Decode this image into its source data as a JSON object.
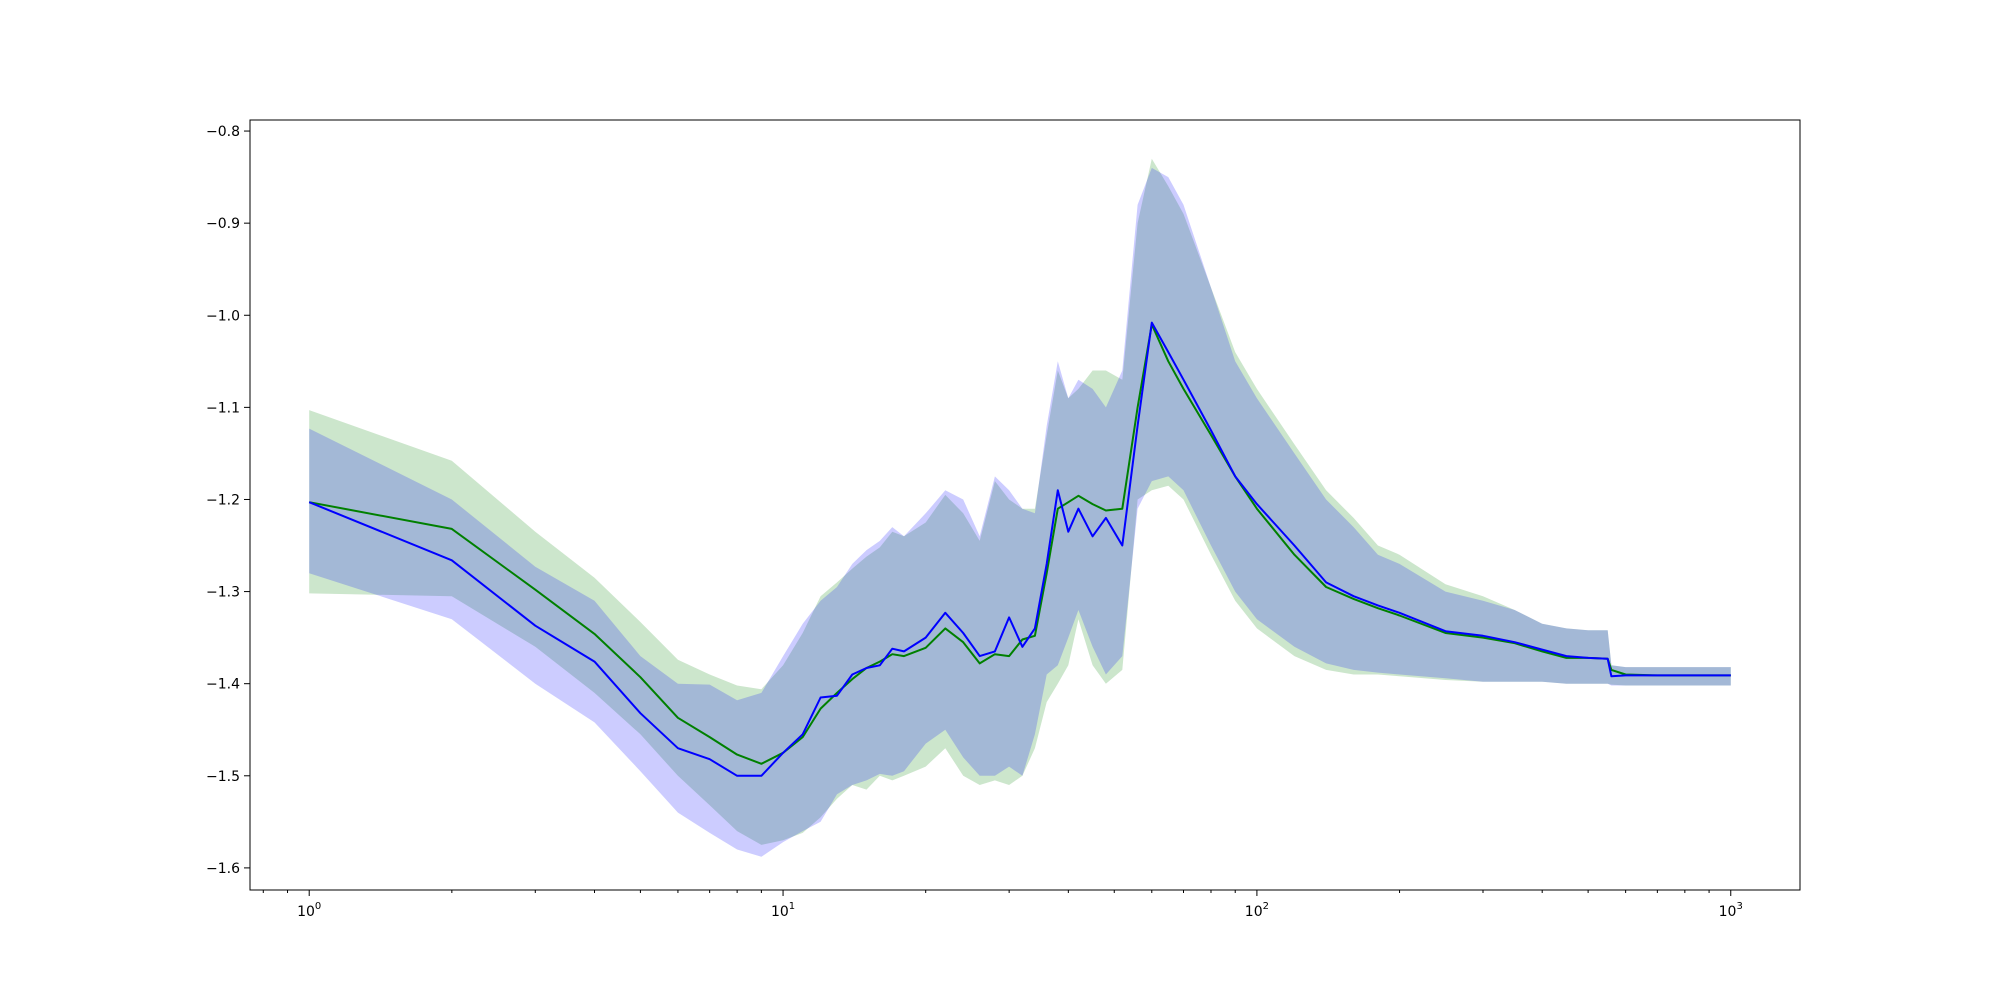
{
  "chart_data": {
    "type": "line",
    "title": "",
    "xlabel": "",
    "ylabel": "",
    "xscale": "log",
    "xlim": [
      0.75,
      1400
    ],
    "ylim": [
      -1.624,
      -0.788
    ],
    "grid": false,
    "legend": "none",
    "x_ticks": [
      {
        "base": "10",
        "exp": "0",
        "value": 1
      },
      {
        "base": "10",
        "exp": "1",
        "value": 10
      },
      {
        "base": "10",
        "exp": "2",
        "value": 100
      },
      {
        "base": "10",
        "exp": "3",
        "value": 1000
      }
    ],
    "y_ticks": [
      {
        "label": "−0.8",
        "value": -0.8
      },
      {
        "label": "−0.9",
        "value": -0.9
      },
      {
        "label": "−1.0",
        "value": -1.0
      },
      {
        "label": "−1.1",
        "value": -1.1
      },
      {
        "label": "−1.2",
        "value": -1.2
      },
      {
        "label": "−1.3",
        "value": -1.3
      },
      {
        "label": "−1.4",
        "value": -1.4
      },
      {
        "label": "−1.5",
        "value": -1.5
      },
      {
        "label": "−1.6",
        "value": -1.6
      }
    ],
    "series": [
      {
        "color": "#008000",
        "band_color": "#008000",
        "x": [
          1,
          2,
          3,
          4,
          5,
          6,
          7,
          8,
          9,
          10,
          11,
          12,
          13,
          14,
          15,
          16,
          17,
          18,
          20,
          22,
          24,
          26,
          28,
          30,
          32,
          34,
          36,
          38,
          40,
          42,
          45,
          48,
          52,
          56,
          60,
          65,
          70,
          80,
          90,
          100,
          120,
          140,
          160,
          180,
          200,
          250,
          300,
          350,
          400,
          450,
          500,
          550,
          560,
          600,
          700,
          800,
          1000
        ],
        "y": [
          -1.203,
          -1.232,
          -1.298,
          -1.346,
          -1.393,
          -1.437,
          -1.458,
          -1.477,
          -1.487,
          -1.475,
          -1.458,
          -1.427,
          -1.41,
          -1.395,
          -1.383,
          -1.376,
          -1.368,
          -1.37,
          -1.361,
          -1.34,
          -1.355,
          -1.378,
          -1.368,
          -1.37,
          -1.352,
          -1.348,
          -1.28,
          -1.21,
          -1.203,
          -1.196,
          -1.205,
          -1.212,
          -1.21,
          -1.1,
          -1.01,
          -1.05,
          -1.08,
          -1.13,
          -1.175,
          -1.21,
          -1.26,
          -1.295,
          -1.308,
          -1.318,
          -1.326,
          -1.345,
          -1.35,
          -1.356,
          -1.365,
          -1.372,
          -1.372,
          -1.373,
          -1.385,
          -1.39,
          -1.391,
          -1.391,
          -1.391
        ],
        "lower": [
          -1.302,
          -1.305,
          -1.36,
          -1.41,
          -1.455,
          -1.5,
          -1.532,
          -1.56,
          -1.575,
          -1.57,
          -1.562,
          -1.545,
          -1.525,
          -1.51,
          -1.515,
          -1.5,
          -1.505,
          -1.5,
          -1.49,
          -1.47,
          -1.5,
          -1.51,
          -1.505,
          -1.51,
          -1.5,
          -1.47,
          -1.42,
          -1.4,
          -1.38,
          -1.33,
          -1.38,
          -1.4,
          -1.385,
          -1.2,
          -1.19,
          -1.185,
          -1.2,
          -1.26,
          -1.31,
          -1.34,
          -1.37,
          -1.385,
          -1.39,
          -1.39,
          -1.392,
          -1.396,
          -1.398,
          -1.398,
          -1.398,
          -1.4,
          -1.4,
          -1.4,
          -1.401,
          -1.402,
          -1.402,
          -1.402,
          -1.402
        ],
        "upper": [
          -1.103,
          -1.158,
          -1.235,
          -1.285,
          -1.333,
          -1.374,
          -1.39,
          -1.402,
          -1.406,
          -1.38,
          -1.345,
          -1.305,
          -1.29,
          -1.275,
          -1.262,
          -1.252,
          -1.235,
          -1.24,
          -1.225,
          -1.195,
          -1.215,
          -1.245,
          -1.18,
          -1.2,
          -1.21,
          -1.21,
          -1.13,
          -1.06,
          -1.09,
          -1.08,
          -1.06,
          -1.06,
          -1.07,
          -0.9,
          -0.83,
          -0.86,
          -0.89,
          -0.97,
          -1.04,
          -1.08,
          -1.14,
          -1.19,
          -1.22,
          -1.25,
          -1.26,
          -1.292,
          -1.305,
          -1.32,
          -1.335,
          -1.34,
          -1.342,
          -1.342,
          -1.38,
          -1.382,
          -1.382,
          -1.382,
          -1.382
        ]
      },
      {
        "color": "#0000ff",
        "band_color": "#0000ff",
        "x": [
          1,
          2,
          3,
          4,
          5,
          6,
          7,
          8,
          9,
          10,
          11,
          12,
          13,
          14,
          15,
          16,
          17,
          18,
          20,
          22,
          24,
          26,
          28,
          30,
          32,
          34,
          36,
          38,
          40,
          42,
          45,
          48,
          52,
          56,
          60,
          65,
          70,
          80,
          90,
          100,
          120,
          140,
          160,
          180,
          200,
          250,
          300,
          350,
          400,
          450,
          500,
          550,
          560,
          600,
          700,
          800,
          1000
        ],
        "y": [
          -1.203,
          -1.266,
          -1.337,
          -1.376,
          -1.432,
          -1.47,
          -1.482,
          -1.5,
          -1.5,
          -1.475,
          -1.455,
          -1.415,
          -1.413,
          -1.39,
          -1.383,
          -1.38,
          -1.362,
          -1.365,
          -1.35,
          -1.323,
          -1.345,
          -1.37,
          -1.365,
          -1.328,
          -1.36,
          -1.34,
          -1.27,
          -1.19,
          -1.235,
          -1.21,
          -1.24,
          -1.22,
          -1.25,
          -1.12,
          -1.008,
          -1.04,
          -1.07,
          -1.125,
          -1.175,
          -1.205,
          -1.25,
          -1.29,
          -1.305,
          -1.315,
          -1.323,
          -1.343,
          -1.348,
          -1.355,
          -1.363,
          -1.37,
          -1.372,
          -1.373,
          -1.392,
          -1.391,
          -1.391,
          -1.391,
          -1.391
        ],
        "lower": [
          -1.28,
          -1.33,
          -1.4,
          -1.442,
          -1.495,
          -1.54,
          -1.562,
          -1.58,
          -1.588,
          -1.572,
          -1.56,
          -1.55,
          -1.52,
          -1.51,
          -1.505,
          -1.498,
          -1.5,
          -1.495,
          -1.465,
          -1.45,
          -1.48,
          -1.5,
          -1.5,
          -1.49,
          -1.5,
          -1.455,
          -1.39,
          -1.38,
          -1.35,
          -1.32,
          -1.36,
          -1.39,
          -1.37,
          -1.21,
          -1.18,
          -1.175,
          -1.19,
          -1.25,
          -1.3,
          -1.33,
          -1.36,
          -1.378,
          -1.385,
          -1.388,
          -1.39,
          -1.394,
          -1.398,
          -1.398,
          -1.398,
          -1.4,
          -1.4,
          -1.4,
          -1.402,
          -1.402,
          -1.402,
          -1.402,
          -1.402
        ],
        "upper": [
          -1.123,
          -1.2,
          -1.273,
          -1.31,
          -1.37,
          -1.4,
          -1.401,
          -1.418,
          -1.41,
          -1.37,
          -1.335,
          -1.31,
          -1.295,
          -1.27,
          -1.255,
          -1.245,
          -1.23,
          -1.24,
          -1.215,
          -1.19,
          -1.2,
          -1.24,
          -1.175,
          -1.19,
          -1.21,
          -1.215,
          -1.12,
          -1.05,
          -1.09,
          -1.07,
          -1.08,
          -1.1,
          -1.06,
          -0.88,
          -0.84,
          -0.85,
          -0.88,
          -0.97,
          -1.05,
          -1.09,
          -1.15,
          -1.2,
          -1.23,
          -1.26,
          -1.27,
          -1.3,
          -1.31,
          -1.32,
          -1.335,
          -1.34,
          -1.342,
          -1.342,
          -1.38,
          -1.382,
          -1.382,
          -1.382,
          -1.382
        ]
      }
    ]
  }
}
